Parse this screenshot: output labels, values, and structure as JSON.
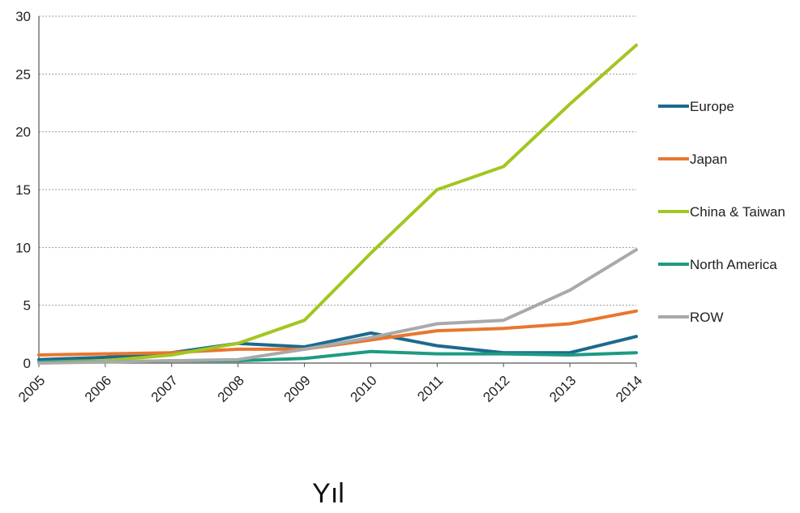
{
  "chart_data": {
    "type": "line",
    "title": "",
    "xlabel": "Yıl",
    "ylabel": "",
    "x": [
      "2005",
      "2006",
      "2007",
      "2008",
      "2009",
      "2010",
      "2011",
      "2012",
      "2013",
      "2014"
    ],
    "ylim": [
      0,
      30
    ],
    "yticks": [
      "0",
      "5",
      "10",
      "15",
      "20",
      "25",
      "30"
    ],
    "grid": "horizontal dotted",
    "legend_position": "right",
    "series": [
      {
        "name": "Europe",
        "color": "#1b6a8f",
        "values": [
          0.3,
          0.5,
          0.9,
          1.7,
          1.4,
          2.6,
          1.5,
          0.9,
          0.9,
          2.3
        ]
      },
      {
        "name": "Japan",
        "color": "#e8772e",
        "values": [
          0.7,
          0.8,
          0.9,
          1.2,
          1.2,
          2.0,
          2.8,
          3.0,
          3.4,
          4.5
        ]
      },
      {
        "name": "China & Taiwan",
        "color": "#a3c620",
        "values": [
          0.1,
          0.2,
          0.7,
          1.7,
          3.7,
          9.5,
          15.0,
          17.0,
          22.4,
          27.5
        ]
      },
      {
        "name": "North America",
        "color": "#1d9b82",
        "values": [
          0.1,
          0.1,
          0.2,
          0.2,
          0.4,
          1.0,
          0.8,
          0.8,
          0.7,
          0.9
        ]
      },
      {
        "name": "ROW",
        "color": "#a9a9a9",
        "values": [
          0.0,
          0.1,
          0.2,
          0.3,
          1.2,
          2.2,
          3.4,
          3.7,
          6.3,
          9.8
        ]
      }
    ]
  }
}
